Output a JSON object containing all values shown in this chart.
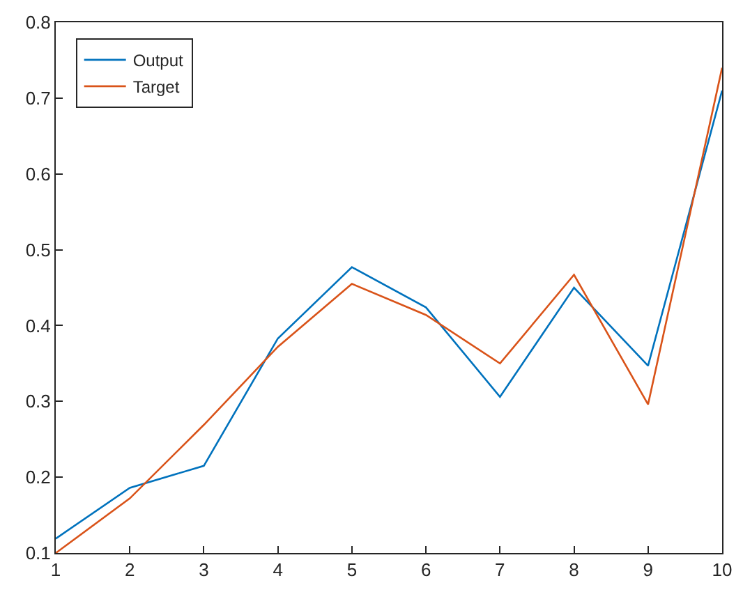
{
  "chart_data": {
    "type": "line",
    "x": [
      1,
      2,
      3,
      4,
      5,
      6,
      7,
      8,
      9,
      10
    ],
    "series": [
      {
        "name": "Output",
        "color": "#0072bd",
        "values": [
          0.119,
          0.186,
          0.215,
          0.383,
          0.477,
          0.424,
          0.306,
          0.45,
          0.347,
          0.71
        ]
      },
      {
        "name": "Target",
        "color": "#d95319",
        "values": [
          0.1,
          0.172,
          0.269,
          0.372,
          0.455,
          0.414,
          0.35,
          0.467,
          0.296,
          0.74
        ]
      }
    ],
    "xlim": [
      1,
      10
    ],
    "xticks": [
      1,
      2,
      3,
      4,
      5,
      6,
      7,
      8,
      9,
      10
    ],
    "ylim": [
      0.1,
      0.8
    ],
    "yticks": [
      0.1,
      0.2,
      0.3,
      0.4,
      0.5,
      0.6,
      0.7,
      0.8
    ],
    "legend": "top left",
    "marker": "none",
    "line_style": "solid"
  }
}
